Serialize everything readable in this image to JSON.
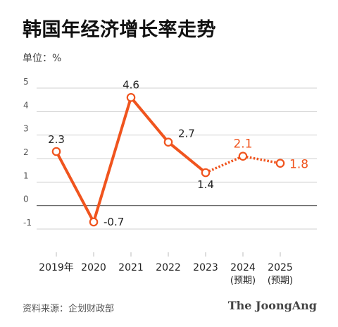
{
  "title": "韩国年经济增长率走势",
  "unit_label": "单位：%",
  "source": "资料来源：企划财政部",
  "brand": "The JoongAng",
  "colors": {
    "line": "#F0541E",
    "forecast_label": "#F0541E",
    "grid": "#d0d0d0",
    "zero_line": "#555555",
    "text": "#222222"
  },
  "chart_data": {
    "type": "line",
    "title": "韩国年经济增长率走势",
    "ylabel": "单位：%",
    "xlabel": "",
    "categories": [
      "2019年",
      "2020",
      "2021",
      "2022",
      "2023",
      "2024",
      "2025"
    ],
    "category_sublabels": [
      "",
      "",
      "",
      "",
      "",
      "(预期)",
      "(预期)"
    ],
    "values": [
      2.3,
      -0.7,
      4.6,
      2.7,
      1.4,
      2.1,
      1.8
    ],
    "data_labels": [
      "2.3",
      "-0.7",
      "4.6",
      "2.7",
      "1.4",
      "2.1",
      "1.8"
    ],
    "forecast": [
      false,
      false,
      false,
      false,
      false,
      true,
      true
    ],
    "ylim": [
      -1,
      5
    ],
    "yticks": [
      "-1",
      "0",
      "1",
      "2",
      "3",
      "4",
      "5"
    ],
    "grid": true,
    "legend": "none"
  }
}
